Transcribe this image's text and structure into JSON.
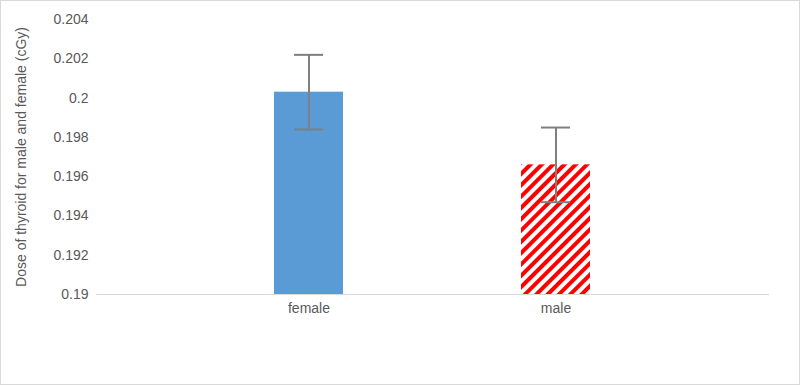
{
  "chart_data": {
    "type": "bar",
    "categories": [
      "female",
      "male"
    ],
    "values": [
      0.2003,
      0.1966
    ],
    "errors": [
      0.0019,
      0.0019
    ],
    "colors": [
      "#5b9bd5",
      "#ff0000"
    ],
    "y_label": "Dose of thyroid for male and female (cGy)",
    "ylim": [
      0.19,
      0.204
    ],
    "yticks": [
      0.19,
      0.192,
      0.194,
      0.196,
      0.198,
      0.2,
      0.202,
      0.204
    ],
    "grid": false
  }
}
